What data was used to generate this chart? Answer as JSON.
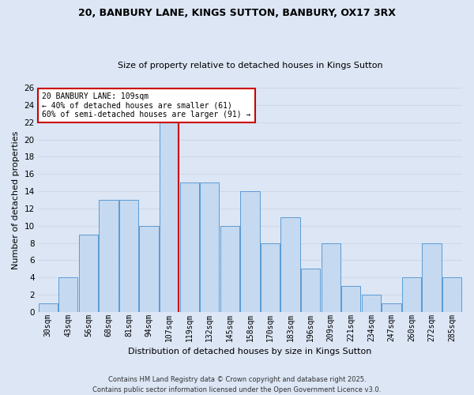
{
  "title1": "20, BANBURY LANE, KINGS SUTTON, BANBURY, OX17 3RX",
  "title2": "Size of property relative to detached houses in Kings Sutton",
  "xlabel": "Distribution of detached houses by size in Kings Sutton",
  "ylabel": "Number of detached properties",
  "bar_labels": [
    "30sqm",
    "43sqm",
    "56sqm",
    "68sqm",
    "81sqm",
    "94sqm",
    "107sqm",
    "119sqm",
    "132sqm",
    "145sqm",
    "158sqm",
    "170sqm",
    "183sqm",
    "196sqm",
    "209sqm",
    "221sqm",
    "234sqm",
    "247sqm",
    "260sqm",
    "272sqm",
    "285sqm"
  ],
  "bar_values": [
    1,
    4,
    9,
    13,
    13,
    10,
    22,
    15,
    15,
    10,
    14,
    8,
    11,
    5,
    8,
    3,
    2,
    1,
    4,
    8,
    4
  ],
  "bar_color": "#c5d9f0",
  "bar_edgecolor": "#5b9bd5",
  "annotation_text": "20 BANBURY LANE: 109sqm\n← 40% of detached houses are smaller (61)\n60% of semi-detached houses are larger (91) →",
  "annotation_box_color": "#ffffff",
  "annotation_box_edgecolor": "#cc0000",
  "vline_color": "#cc0000",
  "grid_color": "#d0d8e8",
  "background_color": "#dce6f5",
  "footnote1": "Contains HM Land Registry data © Crown copyright and database right 2025.",
  "footnote2": "Contains public sector information licensed under the Open Government Licence v3.0.",
  "ylim": [
    0,
    26
  ],
  "yticks": [
    0,
    2,
    4,
    6,
    8,
    10,
    12,
    14,
    16,
    18,
    20,
    22,
    24,
    26
  ],
  "vline_bin_index": 6,
  "title1_fontsize": 9,
  "title2_fontsize": 8,
  "xlabel_fontsize": 8,
  "ylabel_fontsize": 8,
  "xtick_fontsize": 7,
  "ytick_fontsize": 7.5,
  "annot_fontsize": 7,
  "footnote_fontsize": 6
}
